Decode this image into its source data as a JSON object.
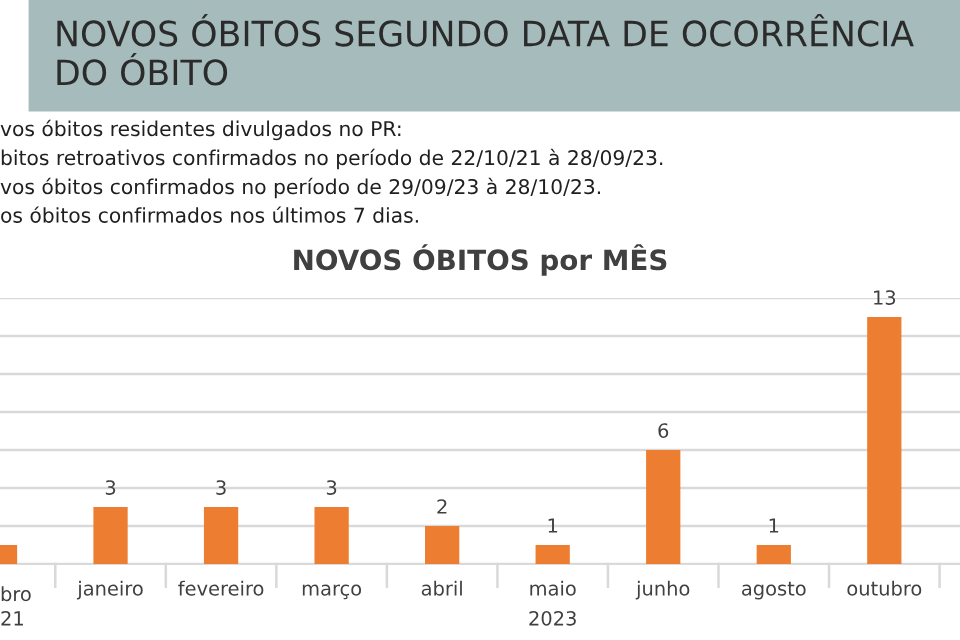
{
  "chart_data": {
    "type": "bar",
    "title": "NOVOS ÓBITOS SEGUNDO DATA DE OCORRÊNCIA DO ÓBITO",
    "subtitle": "NOVOS ÓBITOS por MÊS",
    "annotations": [
      "vos óbitos residentes divulgados no PR:",
      "bitos retroativos confirmados no período de 22/10/21 à 28/09/23.",
      "vos óbitos confirmados no período de 29/09/23 à 28/10/23.",
      "os óbitos confirmados nos últimos 7 dias.",
      "21",
      "2023"
    ],
    "categories": [
      "bro",
      "janeiro",
      "fevereiro",
      "março",
      "abril",
      "maio",
      "junho",
      "agosto",
      "outubro"
    ],
    "values": [
      1,
      3,
      3,
      3,
      2,
      1,
      6,
      1,
      13
    ],
    "value_labels": [
      null,
      "3",
      "3",
      "3",
      "2",
      "1",
      "6",
      "1",
      "13"
    ],
    "color": "#ed7d31",
    "ylim": [
      0,
      14
    ],
    "yticks": [
      {
        "value": 0,
        "label": null
      },
      {
        "value": 2,
        "label": null
      },
      {
        "value": 4,
        "label": null
      },
      {
        "value": 6,
        "label": null
      },
      {
        "value": 8,
        "label": null
      },
      {
        "value": 10,
        "label": null
      },
      {
        "value": 12,
        "label": null
      },
      {
        "value": 14,
        "label": null
      }
    ],
    "grid": "y",
    "tick_labels": "x",
    "legend": false
  }
}
